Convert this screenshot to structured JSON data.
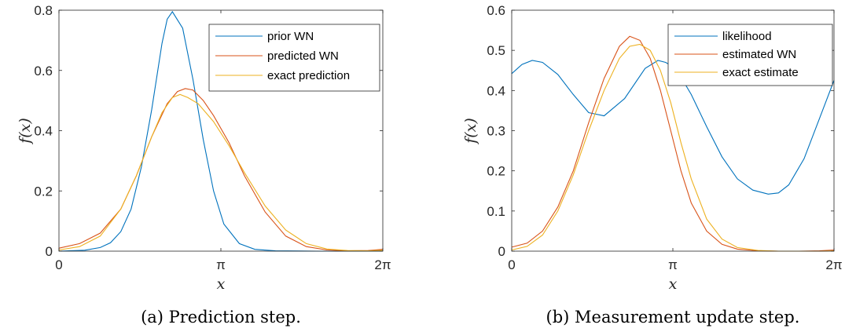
{
  "chart_data": [
    {
      "type": "line",
      "caption": "(a) Prediction step.",
      "xlabel": "x",
      "ylabel": "f(x)",
      "xlim": [
        0,
        6.2832
      ],
      "ylim": [
        0,
        0.8
      ],
      "xticks": [
        {
          "value": 0,
          "label": "0"
        },
        {
          "value": 3.1416,
          "label": "π"
        },
        {
          "value": 6.2832,
          "label": "2π"
        }
      ],
      "yticks": [
        {
          "value": 0,
          "label": "0"
        },
        {
          "value": 0.2,
          "label": "0.2"
        },
        {
          "value": 0.4,
          "label": "0.4"
        },
        {
          "value": 0.6,
          "label": "0.6"
        },
        {
          "value": 0.8,
          "label": "0.8"
        }
      ],
      "grid": false,
      "legend_position": "top-right",
      "series": [
        {
          "name": "prior WN",
          "color": "#0072BD",
          "x": [
            0,
            0.5,
            0.8,
            1.0,
            1.2,
            1.4,
            1.6,
            1.8,
            2.0,
            2.1,
            2.2,
            2.4,
            2.6,
            2.8,
            3.0,
            3.2,
            3.5,
            3.8,
            4.2,
            5.0,
            6.2832
          ],
          "y": [
            0.0,
            0.003,
            0.012,
            0.028,
            0.065,
            0.14,
            0.28,
            0.47,
            0.69,
            0.77,
            0.795,
            0.74,
            0.57,
            0.37,
            0.2,
            0.09,
            0.025,
            0.006,
            0.001,
            0.0,
            0.0
          ]
        },
        {
          "name": "predicted WN",
          "color": "#D95319",
          "x": [
            0,
            0.4,
            0.8,
            1.2,
            1.5,
            1.8,
            2.1,
            2.3,
            2.45,
            2.6,
            2.8,
            3.0,
            3.3,
            3.6,
            4.0,
            4.4,
            4.8,
            5.2,
            5.6,
            6.0,
            6.2832
          ],
          "y": [
            0.01,
            0.025,
            0.06,
            0.14,
            0.25,
            0.38,
            0.49,
            0.53,
            0.54,
            0.535,
            0.5,
            0.45,
            0.36,
            0.25,
            0.13,
            0.05,
            0.015,
            0.004,
            0.001,
            0.002,
            0.006
          ]
        },
        {
          "name": "exact prediction",
          "color": "#EDB120",
          "x": [
            0,
            0.4,
            0.8,
            1.2,
            1.5,
            1.8,
            2.0,
            2.2,
            2.35,
            2.5,
            2.7,
            3.0,
            3.3,
            3.6,
            4.0,
            4.4,
            4.8,
            5.2,
            5.6,
            6.0,
            6.2832
          ],
          "y": [
            0.004,
            0.015,
            0.05,
            0.14,
            0.25,
            0.38,
            0.46,
            0.51,
            0.52,
            0.51,
            0.49,
            0.43,
            0.35,
            0.26,
            0.15,
            0.07,
            0.025,
            0.007,
            0.002,
            0.001,
            0.003
          ]
        }
      ]
    },
    {
      "type": "line",
      "caption": "(b) Measurement update step.",
      "xlabel": "x",
      "ylabel": "f(x)",
      "xlim": [
        0,
        6.2832
      ],
      "ylim": [
        0,
        0.6
      ],
      "xticks": [
        {
          "value": 0,
          "label": "0"
        },
        {
          "value": 3.1416,
          "label": "π"
        },
        {
          "value": 6.2832,
          "label": "2π"
        }
      ],
      "yticks": [
        {
          "value": 0,
          "label": "0"
        },
        {
          "value": 0.1,
          "label": "0.1"
        },
        {
          "value": 0.2,
          "label": "0.2"
        },
        {
          "value": 0.3,
          "label": "0.3"
        },
        {
          "value": 0.4,
          "label": "0.4"
        },
        {
          "value": 0.5,
          "label": "0.5"
        },
        {
          "value": 0.6,
          "label": "0.6"
        }
      ],
      "grid": false,
      "legend_position": "top-right",
      "series": [
        {
          "name": "likelihood",
          "color": "#0072BD",
          "x": [
            0,
            0.2,
            0.4,
            0.6,
            0.9,
            1.2,
            1.5,
            1.8,
            2.2,
            2.6,
            2.85,
            3.0,
            3.2,
            3.5,
            3.8,
            4.1,
            4.4,
            4.7,
            5.0,
            5.2,
            5.4,
            5.7,
            6.0,
            6.2832
          ],
          "y": [
            0.442,
            0.465,
            0.475,
            0.47,
            0.44,
            0.39,
            0.345,
            0.337,
            0.38,
            0.455,
            0.475,
            0.47,
            0.455,
            0.39,
            0.31,
            0.235,
            0.18,
            0.152,
            0.142,
            0.145,
            0.165,
            0.23,
            0.33,
            0.425
          ]
        },
        {
          "name": "estimated WN",
          "color": "#D95319",
          "x": [
            0,
            0.3,
            0.6,
            0.9,
            1.2,
            1.5,
            1.8,
            2.1,
            2.3,
            2.5,
            2.7,
            2.9,
            3.1,
            3.3,
            3.5,
            3.8,
            4.1,
            4.4,
            4.8,
            5.2,
            5.6,
            6.0,
            6.2832
          ],
          "y": [
            0.01,
            0.02,
            0.05,
            0.11,
            0.2,
            0.32,
            0.43,
            0.51,
            0.535,
            0.525,
            0.48,
            0.4,
            0.3,
            0.2,
            0.12,
            0.05,
            0.017,
            0.005,
            0.001,
            0.0,
            0.0,
            0.001,
            0.003
          ]
        },
        {
          "name": "exact estimate",
          "color": "#EDB120",
          "x": [
            0,
            0.3,
            0.6,
            0.9,
            1.2,
            1.5,
            1.8,
            2.1,
            2.3,
            2.5,
            2.7,
            2.9,
            3.1,
            3.3,
            3.5,
            3.8,
            4.1,
            4.4,
            4.8,
            5.2,
            5.6,
            6.0,
            6.2832
          ],
          "y": [
            0.003,
            0.012,
            0.04,
            0.1,
            0.19,
            0.3,
            0.4,
            0.48,
            0.51,
            0.515,
            0.5,
            0.45,
            0.37,
            0.27,
            0.18,
            0.08,
            0.03,
            0.009,
            0.002,
            0.0,
            0.0,
            0.0,
            0.001
          ]
        }
      ]
    }
  ]
}
